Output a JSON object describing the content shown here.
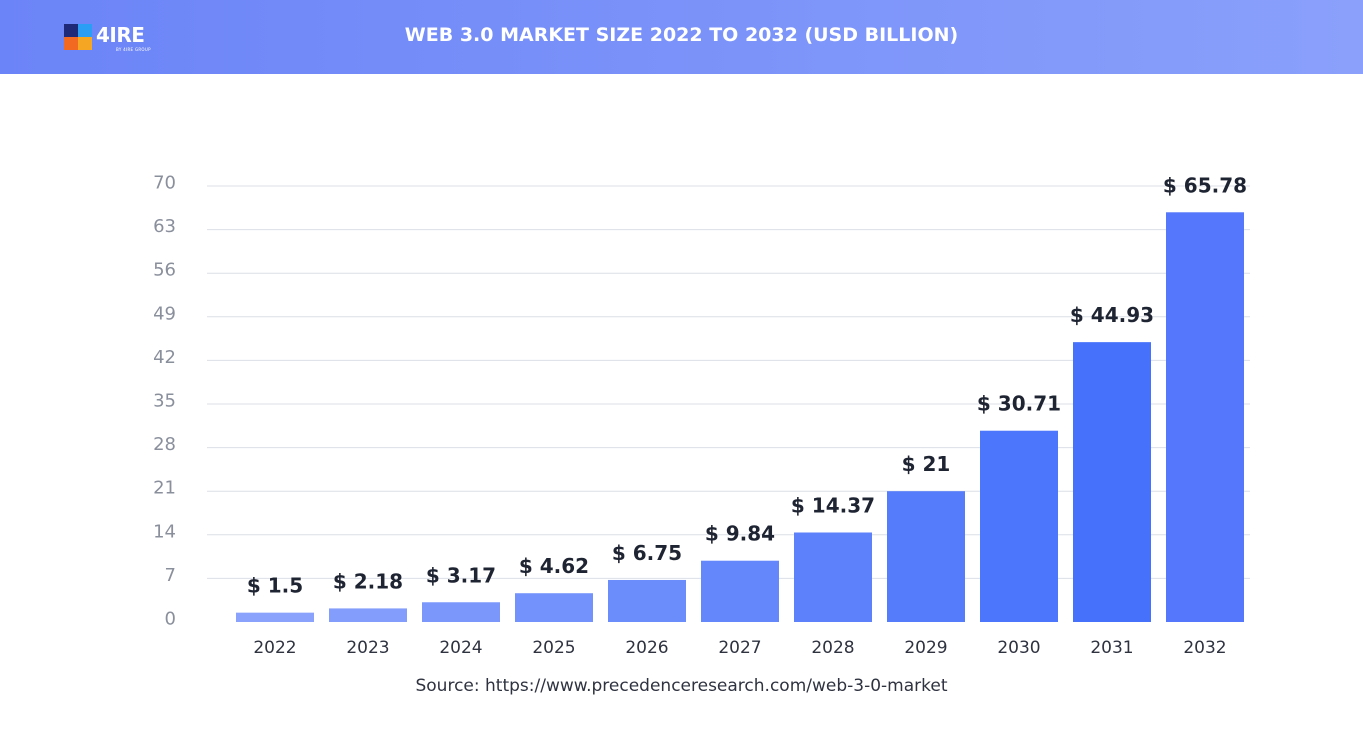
{
  "header": {
    "title": "WEB 3.0 MARKET SIZE 2022 TO 2032 (USD BILLION)",
    "logo_text": "4IRE",
    "logo_subtext": "BY 4IRE GROUP"
  },
  "source": "Source: https://www.precedenceresearch.com/web-3-0-market",
  "colors": {
    "header_start": "#6b84f7",
    "header_end": "#8aa0fb",
    "bar_light": "#8aa2fb",
    "bar_dark": "#4470fb",
    "label": "#1f2433",
    "axis_text": "#8a8f9c",
    "grid": "#dcdfe6"
  },
  "chart_data": {
    "type": "bar",
    "title": "WEB 3.0 MARKET SIZE 2022 TO 2032 (USD BILLION)",
    "xlabel": "",
    "ylabel": "",
    "categories": [
      "2022",
      "2023",
      "2024",
      "2025",
      "2026",
      "2027",
      "2028",
      "2029",
      "2030",
      "2031",
      "2032"
    ],
    "values": [
      1.5,
      2.18,
      3.17,
      4.62,
      6.75,
      9.84,
      14.37,
      21,
      30.71,
      44.93,
      65.78
    ],
    "data_labels": [
      "$ 1.5",
      "$ 2.18",
      "$ 3.17",
      "$ 4.62",
      "$ 6.75",
      "$ 9.84",
      "$ 14.37",
      "$ 21",
      "$ 30.71",
      "$ 44.93",
      "$ 65.78"
    ],
    "yticks": [
      0,
      7,
      14,
      21,
      28,
      35,
      42,
      49,
      56,
      63,
      70
    ],
    "ylim": [
      0,
      70
    ],
    "grid": true,
    "legend": "none"
  }
}
